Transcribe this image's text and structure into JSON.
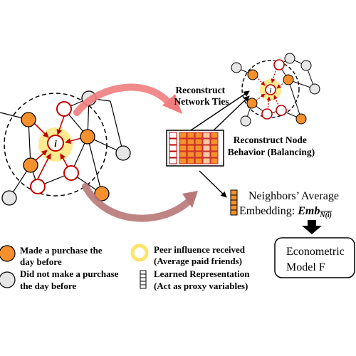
{
  "labels": {
    "reconstruct_ties": [
      "Reconstruct",
      "Network Ties"
    ],
    "reconstruct_behavior": [
      "Reconstruct Node",
      "Behavior (Balancing)"
    ],
    "neighbors_avg": "Neighbors’ Average",
    "embedding_prefix": "Embedding: ",
    "emb_symbol": "Emb",
    "emb_subscript": "N(i)",
    "econometric": [
      "Econometric",
      "Model F"
    ],
    "focal_node": "i"
  },
  "legend": {
    "purchased": [
      "Made a purchase the",
      "day before"
    ],
    "not_purchased": [
      "Did not make a purchase",
      "the day before"
    ],
    "peer_influence": [
      "Peer influence received",
      "(Average paid friends)"
    ],
    "learned_rep": [
      "Learned Representation",
      "(Act as proxy variables)"
    ]
  },
  "colors": {
    "purchased_fill": "#f5912d",
    "not_purchased_fill": "#e6e6e6",
    "focal_fill": "#ffffff",
    "focal_stroke": "#c00000",
    "halo": "#fde36b",
    "arrow_red": "#c00000",
    "embedding_orange": "#f5912d",
    "embedding_light": "#f8c9a3",
    "arrow_top": "#f07d7d",
    "arrow_bottom": "#b87878"
  },
  "icons": [
    "econometric-arrow-icon",
    "embedding-vector-icon",
    "legend-orange-node-icon",
    "legend-gray-node-icon",
    "legend-yellow-ring-icon",
    "legend-stack-icon"
  ]
}
